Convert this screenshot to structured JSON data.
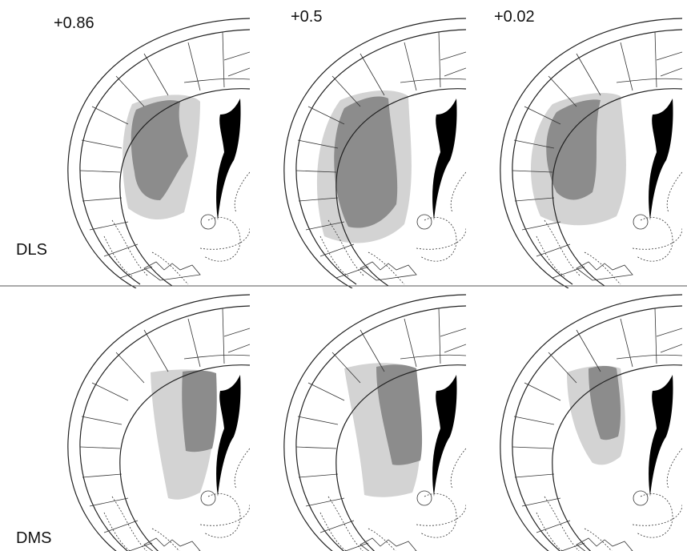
{
  "columns": [
    {
      "label": "+0.86"
    },
    {
      "label": "+0.5"
    },
    {
      "label": "+0.02"
    }
  ],
  "rows": [
    {
      "label": "DLS"
    },
    {
      "label": "DMS"
    }
  ]
}
